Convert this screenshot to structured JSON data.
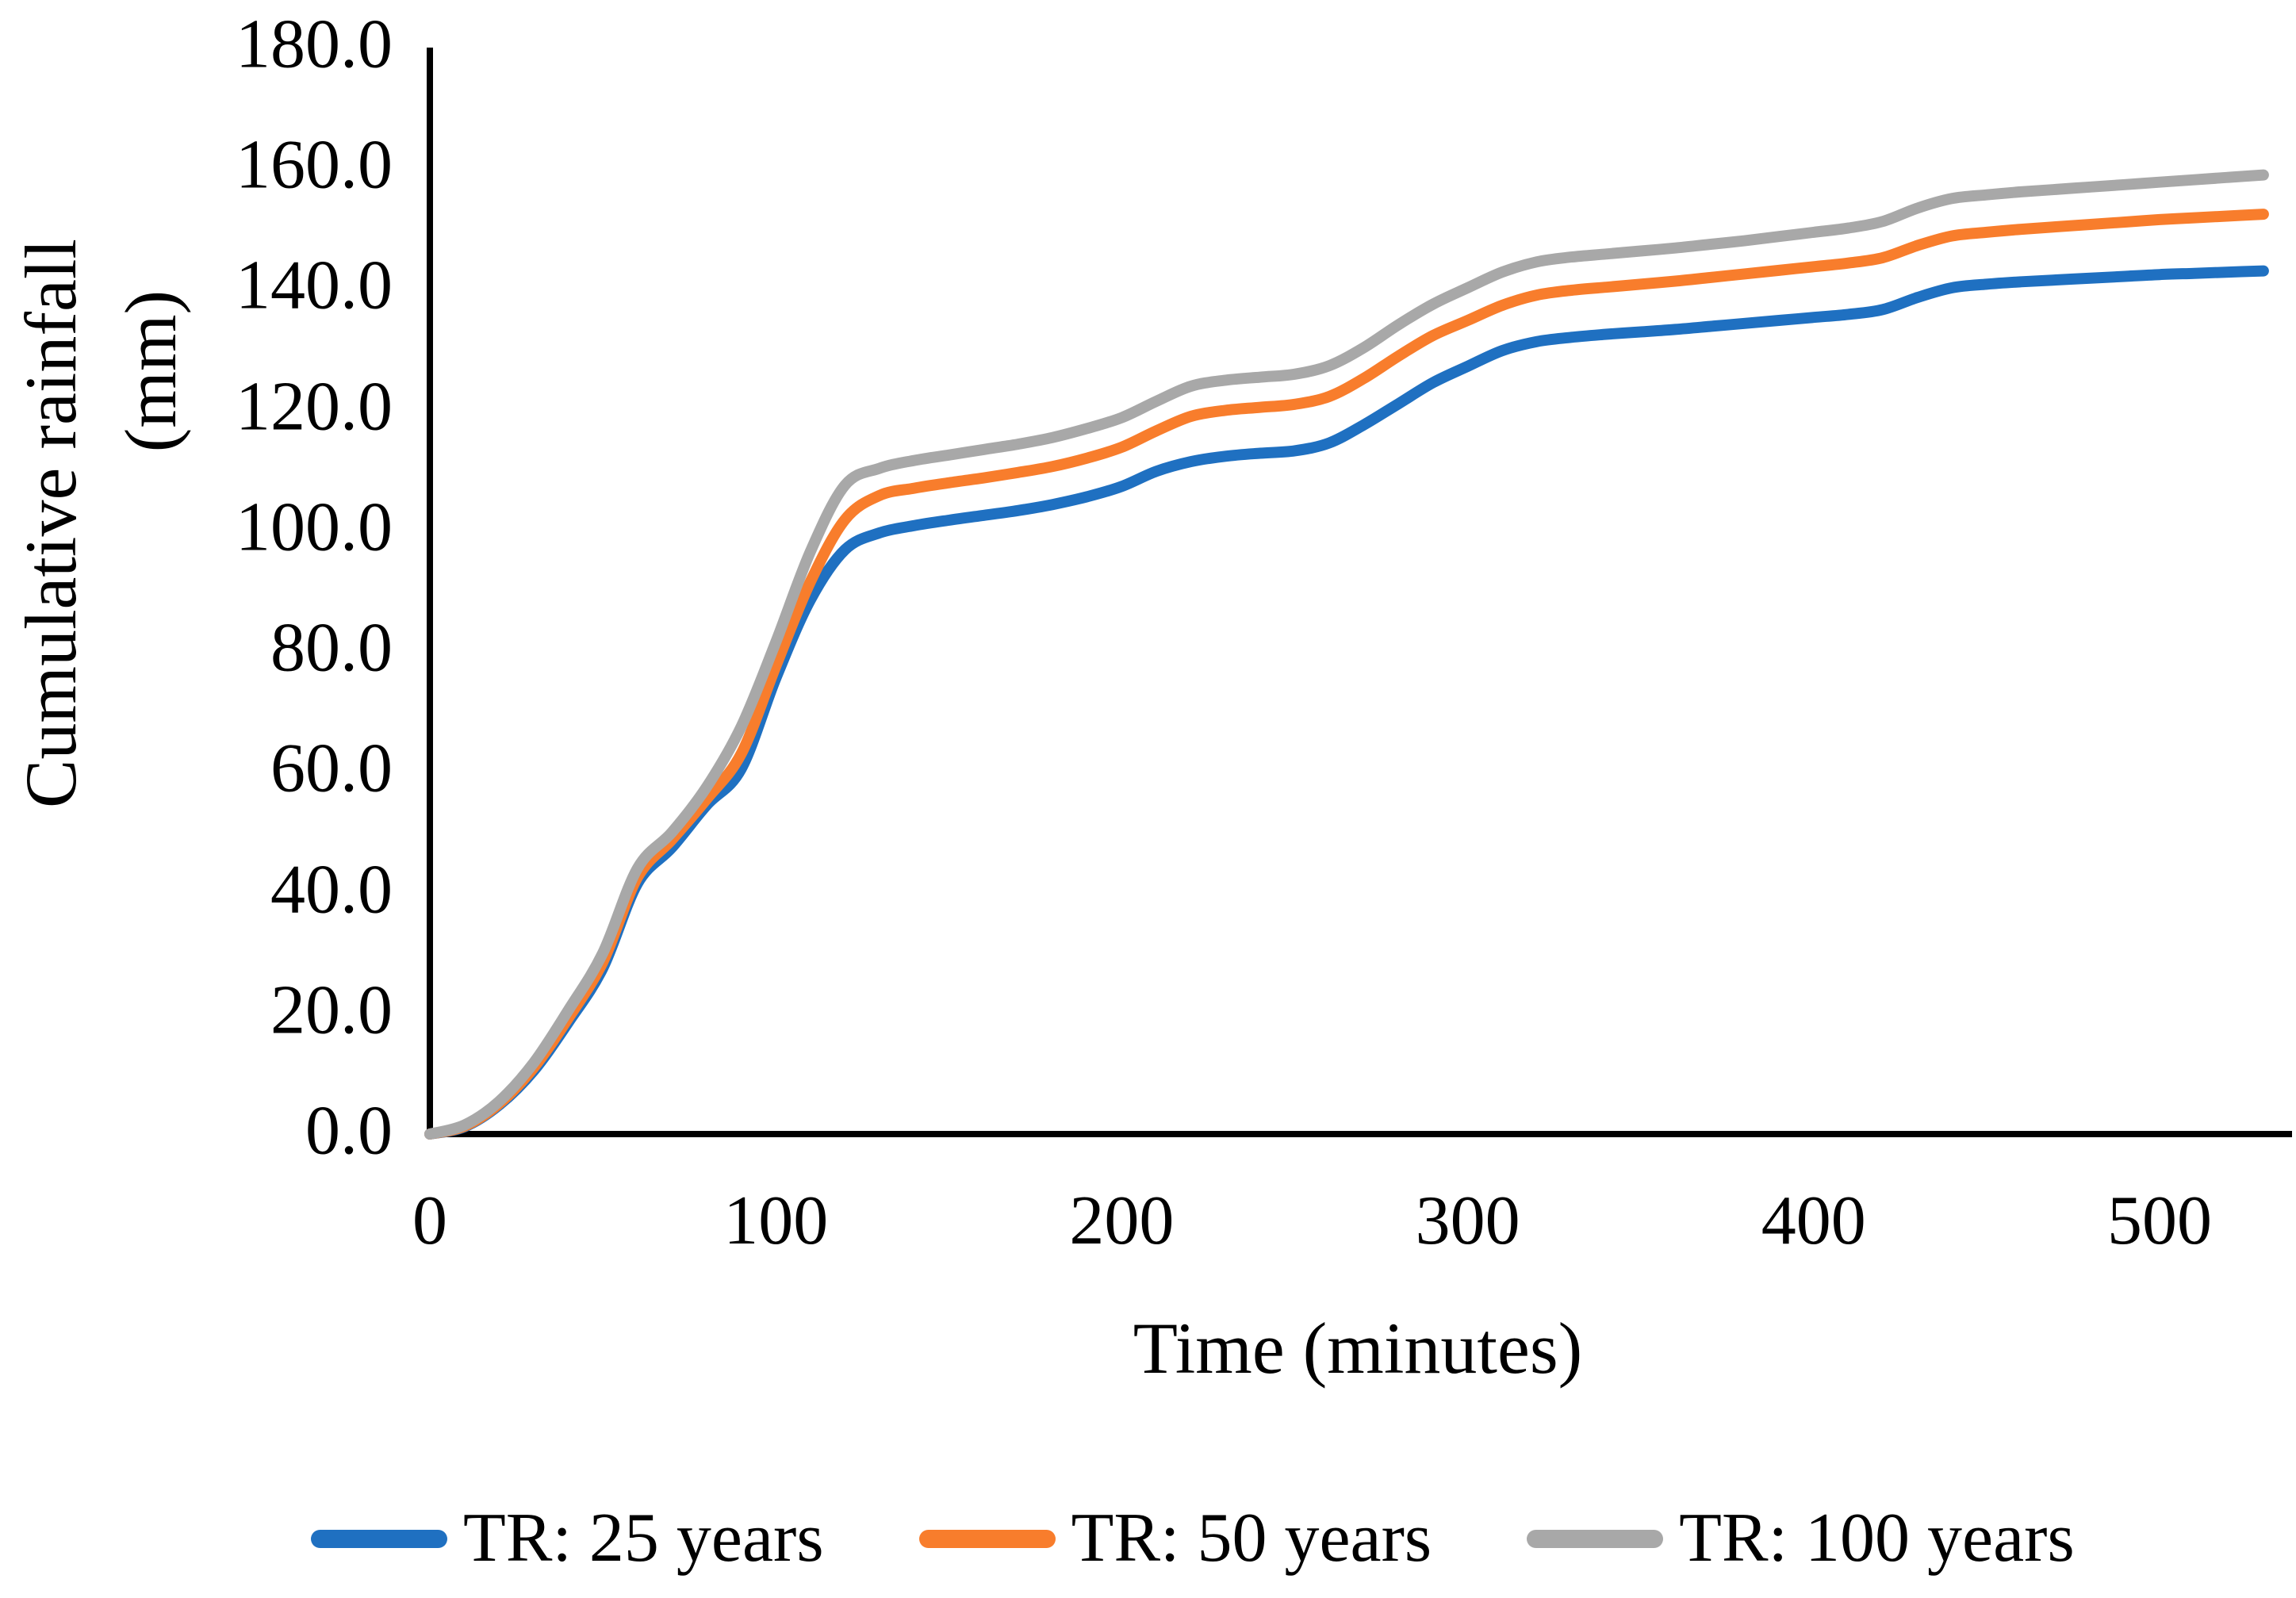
{
  "figure": {
    "background": "#ffffff",
    "axis_color": "#000000",
    "text_color": "#000000"
  },
  "chart_data": {
    "type": "line",
    "title": "",
    "xlabel": "Time (minutes)",
    "ylabel_line1": "Cumulative rainfall",
    "ylabel_line2": "(mm)",
    "xlim": [
      0,
      538
    ],
    "ylim": [
      0,
      180
    ],
    "grid": false,
    "legend_position": "bottom",
    "x_tick_values": [
      0,
      100,
      200,
      300,
      400,
      500
    ],
    "x_tick_labels": [
      "0",
      "100",
      "200",
      "300",
      "400",
      "500"
    ],
    "y_tick_values": [
      0,
      20,
      40,
      60,
      80,
      100,
      120,
      140,
      160,
      180
    ],
    "y_tick_labels": [
      "0.0",
      "20.0",
      "40.0",
      "60.0",
      "80.0",
      "100.0",
      "120.0",
      "140.0",
      "160.0",
      "180.0"
    ],
    "x": [
      0,
      10,
      20,
      30,
      40,
      50,
      60,
      70,
      80,
      90,
      100,
      110,
      120,
      130,
      140,
      150,
      160,
      170,
      180,
      190,
      200,
      210,
      220,
      230,
      240,
      250,
      260,
      270,
      280,
      290,
      300,
      310,
      320,
      330,
      340,
      350,
      360,
      370,
      380,
      390,
      400,
      410,
      420,
      430,
      440,
      450,
      460,
      470,
      480,
      490,
      500,
      510,
      520,
      530
    ],
    "series": [
      {
        "name": "TR: 25 years",
        "color": "#1F70C1",
        "values": [
          0,
          1.2,
          4.8,
          10.5,
          18.5,
          27.5,
          41.5,
          47.5,
          54.5,
          60.5,
          75.5,
          88.5,
          96.8,
          99.6,
          100.8,
          101.7,
          102.5,
          103.3,
          104.3,
          105.6,
          107.3,
          109.8,
          111.4,
          112.3,
          112.8,
          113.2,
          114.5,
          117.5,
          121.0,
          124.5,
          127.2,
          129.8,
          131.3,
          132.0,
          132.5,
          132.9,
          133.3,
          133.8,
          134.3,
          134.8,
          135.3,
          135.8,
          136.6,
          138.6,
          140.2,
          140.8,
          141.2,
          141.5,
          141.8,
          142.1,
          142.4,
          142.6,
          142.8,
          143.0
        ]
      },
      {
        "name": "TR: 50 years",
        "color": "#F87D2C",
        "values": [
          0,
          1.3,
          5.0,
          11.0,
          19.2,
          28.5,
          42.5,
          48.8,
          55.5,
          63.0,
          77.5,
          91.5,
          101.8,
          105.8,
          107.0,
          107.9,
          108.7,
          109.6,
          110.6,
          112.0,
          113.8,
          116.5,
          118.9,
          119.9,
          120.4,
          120.9,
          122.2,
          125.2,
          128.9,
          132.3,
          134.8,
          137.3,
          139.0,
          139.8,
          140.3,
          140.8,
          141.3,
          141.9,
          142.5,
          143.1,
          143.7,
          144.3,
          145.2,
          147.2,
          148.8,
          149.4,
          149.9,
          150.3,
          150.7,
          151.1,
          151.5,
          151.8,
          152.1,
          152.4
        ]
      },
      {
        "name": "TR: 100 years",
        "color": "#A8A8A8",
        "values": [
          0,
          1.5,
          5.4,
          11.8,
          20.5,
          30.0,
          44.0,
          50.0,
          57.5,
          67.5,
          81.5,
          96.5,
          107.5,
          110.3,
          111.6,
          112.5,
          113.4,
          114.3,
          115.4,
          116.9,
          118.7,
          121.4,
          123.9,
          124.9,
          125.4,
          125.9,
          127.3,
          130.3,
          134.1,
          137.5,
          140.2,
          142.8,
          144.5,
          145.3,
          145.8,
          146.3,
          146.8,
          147.4,
          148.0,
          148.7,
          149.4,
          150.1,
          151.2,
          153.4,
          155.0,
          155.6,
          156.1,
          156.5,
          156.9,
          157.3,
          157.7,
          158.1,
          158.5,
          158.9
        ]
      }
    ]
  }
}
